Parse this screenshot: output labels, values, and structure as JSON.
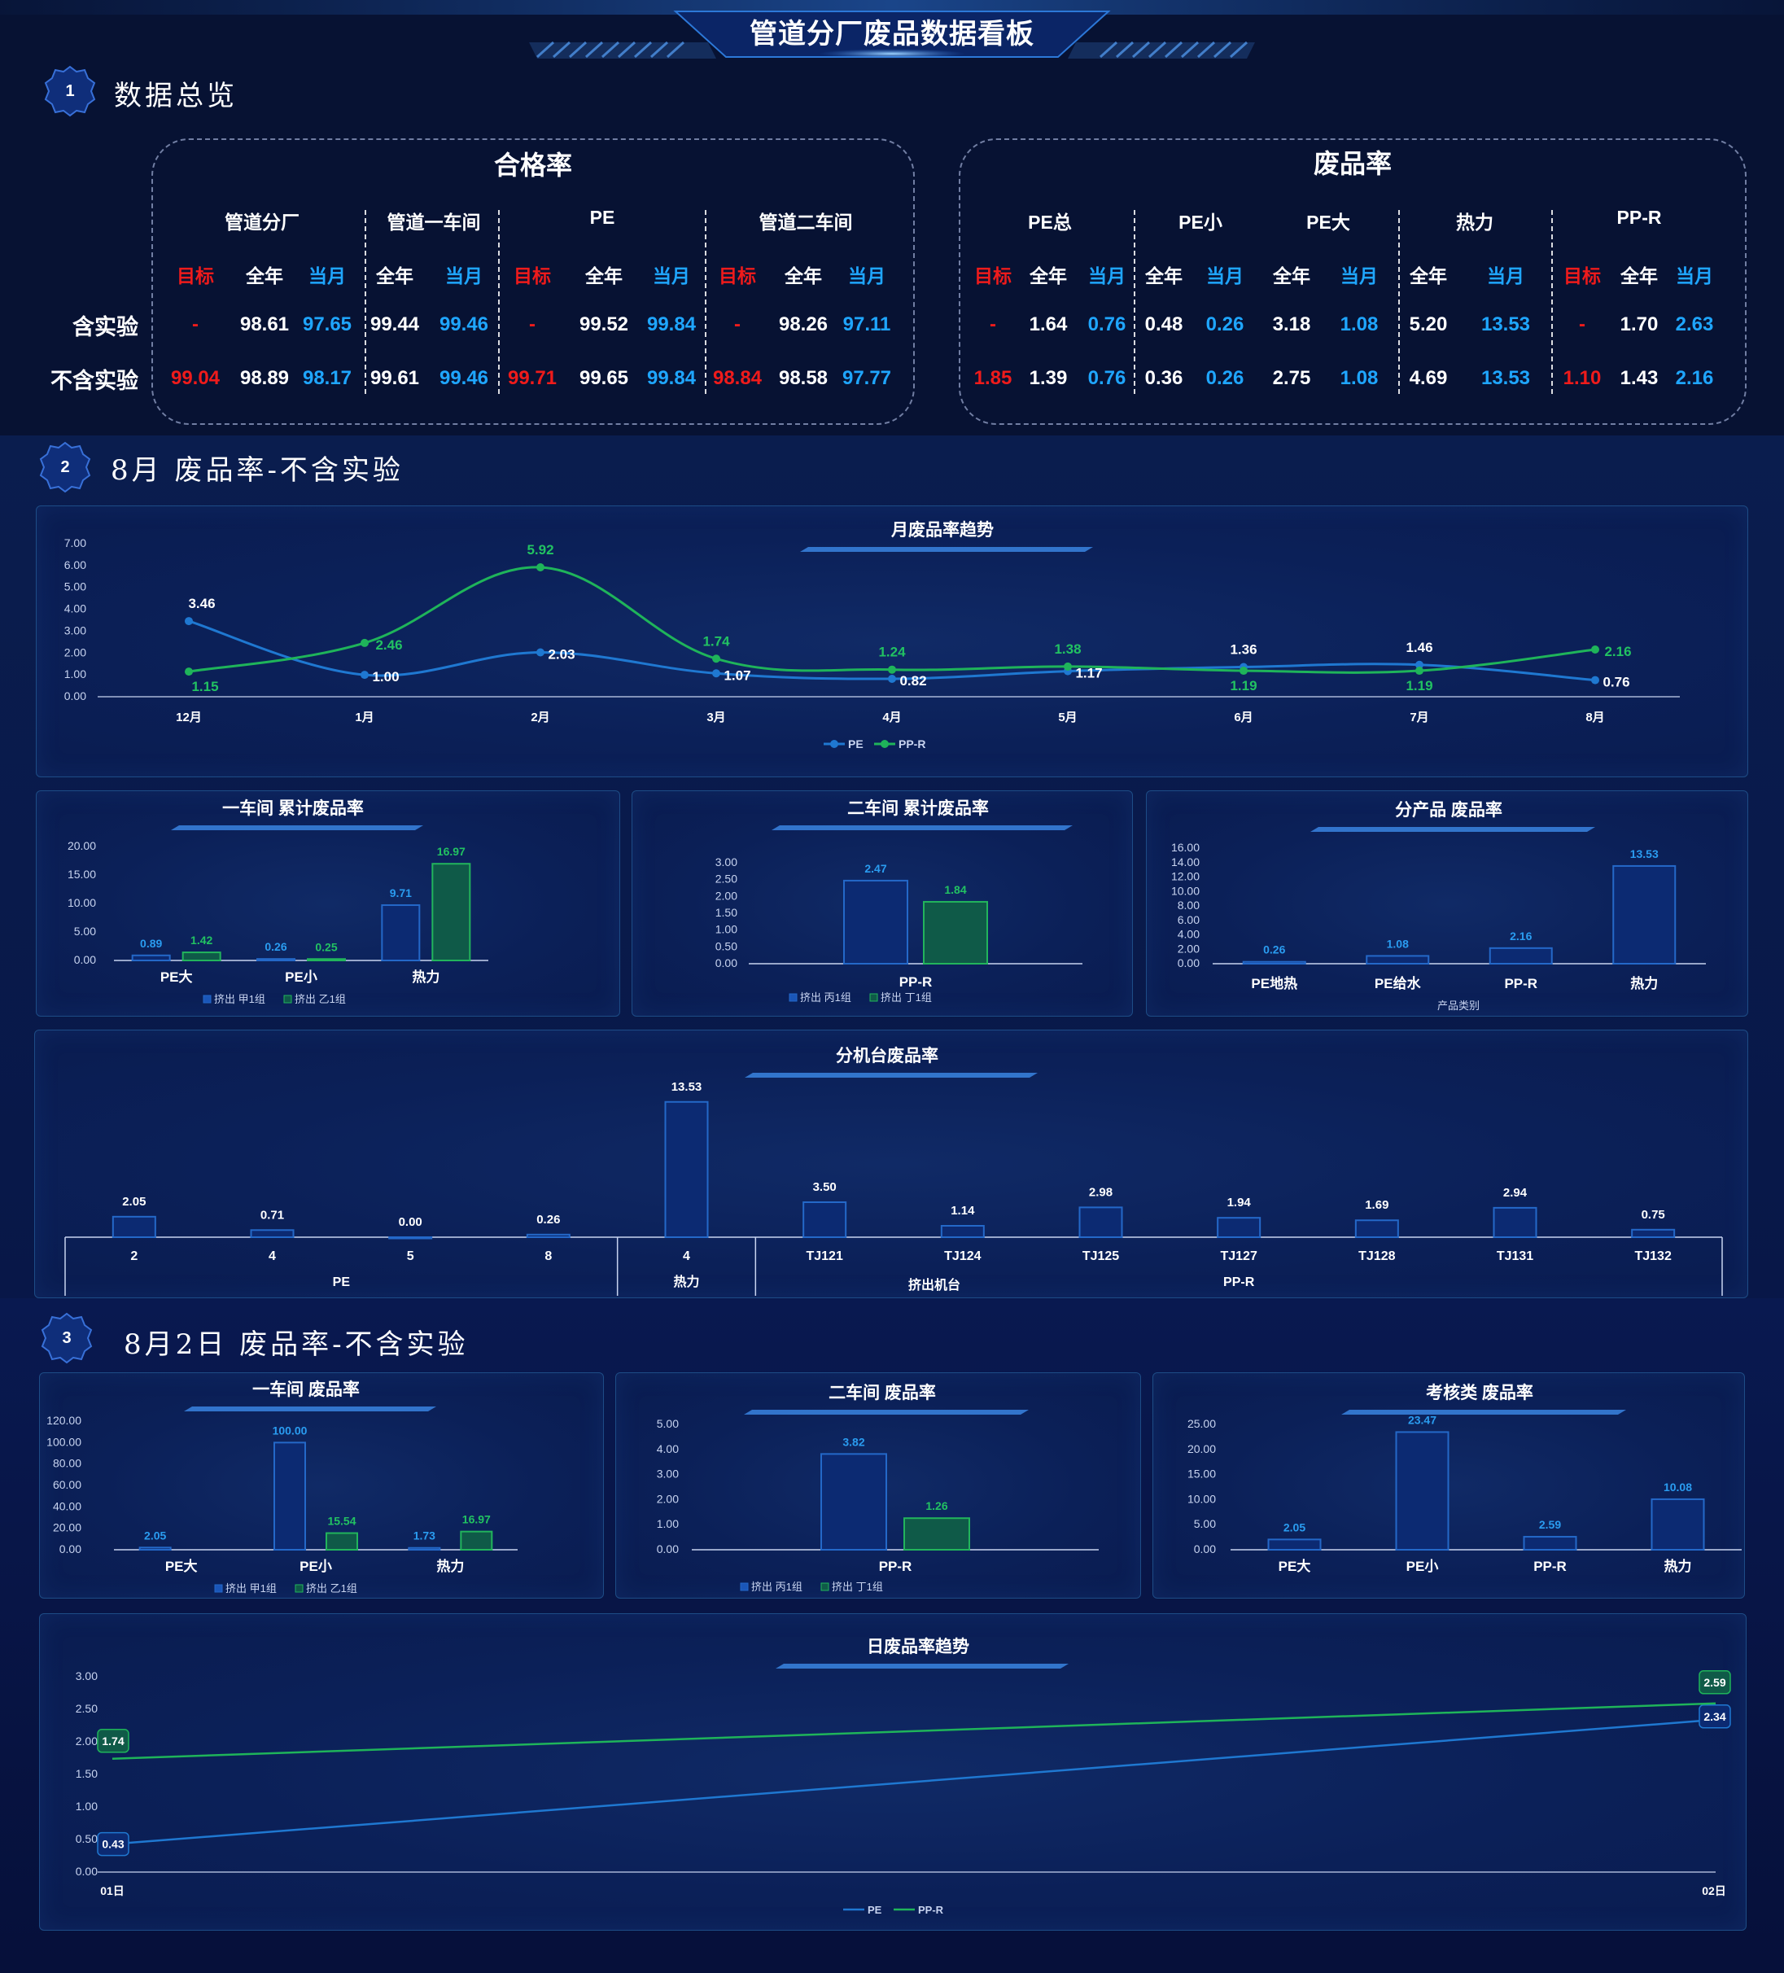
{
  "header": {
    "title": "管道分厂废品数据看板"
  },
  "sections": [
    {
      "num": "1",
      "title": "数据总览"
    },
    {
      "num": "2",
      "title": "8月 废品率-不含实验"
    },
    {
      "num": "3",
      "title": "8月2日 废品率-不含实验"
    }
  ],
  "overview": {
    "pass_rate": {
      "title": "合格率",
      "groups": [
        "管道分厂",
        "管道一车间",
        "PE",
        "管道二车间"
      ],
      "columns": [
        "目标",
        "全年",
        "当月",
        "全年",
        "当月",
        "目标",
        "全年",
        "当月",
        "目标",
        "全年",
        "当月"
      ],
      "row_labels": [
        "含实验",
        "不含实验"
      ],
      "rows": [
        [
          "-",
          "98.61",
          "97.65",
          "99.44",
          "99.46",
          "-",
          "99.52",
          "99.84",
          "-",
          "98.26",
          "97.11"
        ],
        [
          "99.04",
          "98.89",
          "98.17",
          "99.61",
          "99.46",
          "99.71",
          "99.65",
          "99.84",
          "98.84",
          "98.58",
          "97.77"
        ]
      ]
    },
    "scrap_rate": {
      "title": "废品率",
      "groups": [
        "PE总",
        "PE小",
        "PE大",
        "热力",
        "PP-R"
      ],
      "columns": [
        "目标",
        "全年",
        "当月",
        "全年",
        "当月",
        "全年",
        "当月",
        "全年",
        "当月",
        "目标",
        "全年",
        "当月"
      ],
      "rows": [
        [
          "-",
          "1.64",
          "0.76",
          "0.48",
          "0.26",
          "3.18",
          "1.08",
          "5.20",
          "13.53",
          "-",
          "1.70",
          "2.63"
        ],
        [
          "1.85",
          "1.39",
          "0.76",
          "0.36",
          "0.26",
          "2.75",
          "1.08",
          "4.69",
          "13.53",
          "1.10",
          "1.43",
          "2.16"
        ]
      ]
    }
  },
  "chart_data": [
    {
      "id": "monthly_trend",
      "type": "line",
      "title": "月废品率趋势",
      "categories": [
        "12月",
        "1月",
        "2月",
        "3月",
        "4月",
        "5月",
        "6月",
        "7月",
        "8月"
      ],
      "series": [
        {
          "name": "PE",
          "color": "#1f78d1",
          "values": [
            3.46,
            1.0,
            2.03,
            1.07,
            0.82,
            1.17,
            1.36,
            1.46,
            0.76
          ]
        },
        {
          "name": "PP-R",
          "color": "#1fb45a",
          "values": [
            1.15,
            2.46,
            5.92,
            1.74,
            1.24,
            1.38,
            1.19,
            1.19,
            2.16
          ]
        }
      ],
      "y_ticks": [
        "0.00",
        "1.00",
        "2.00",
        "3.00",
        "4.00",
        "5.00",
        "6.00",
        "7.00"
      ],
      "ylim": [
        0,
        7
      ]
    },
    {
      "id": "w1_cum",
      "type": "bar",
      "title": "一车间 累计废品率",
      "categories": [
        "PE大",
        "PE小",
        "热力"
      ],
      "series": [
        {
          "name": "挤出 甲1组",
          "color": "#1f78d1",
          "values": [
            0.89,
            0.26,
            9.71
          ]
        },
        {
          "name": "挤出 乙1组",
          "color": "#1fb45a",
          "values": [
            1.42,
            0.25,
            16.97
          ]
        }
      ],
      "y_ticks": [
        "0.00",
        "5.00",
        "10.00",
        "15.00",
        "20.00"
      ],
      "ylim": [
        0,
        20
      ]
    },
    {
      "id": "w2_cum",
      "type": "bar",
      "title": "二车间 累计废品率",
      "categories": [
        "PP-R"
      ],
      "series": [
        {
          "name": "挤出 丙1组",
          "color": "#1f78d1",
          "values": [
            2.47
          ]
        },
        {
          "name": "挤出 丁1组",
          "color": "#1fb45a",
          "values": [
            1.84
          ]
        }
      ],
      "y_ticks": [
        "0.00",
        "0.50",
        "1.00",
        "1.50",
        "2.00",
        "2.50",
        "3.00"
      ],
      "ylim": [
        0,
        3
      ]
    },
    {
      "id": "by_product",
      "type": "bar",
      "title": "分产品 废品率",
      "categories": [
        "PE地热",
        "PE给水",
        "PP-R",
        "热力"
      ],
      "series": [
        {
          "name": "",
          "color": "#1f78d1",
          "values": [
            0.26,
            1.08,
            2.16,
            13.53
          ]
        }
      ],
      "xlabel": "产品类别",
      "y_ticks": [
        "0.00",
        "2.00",
        "4.00",
        "6.00",
        "8.00",
        "10.00",
        "12.00",
        "14.00",
        "16.00"
      ],
      "ylim": [
        0,
        16
      ]
    },
    {
      "id": "by_machine",
      "type": "bar",
      "title": "分机台废品率",
      "categories": [
        "2",
        "4",
        "5",
        "8",
        "4",
        "TJ121",
        "TJ124",
        "TJ125",
        "TJ127",
        "TJ128",
        "TJ131",
        "TJ132"
      ],
      "series": [
        {
          "name": "",
          "color": "#1f78d1",
          "values": [
            2.05,
            0.71,
            0.0,
            0.26,
            13.53,
            3.5,
            1.14,
            2.98,
            1.94,
            1.69,
            2.94,
            0.75
          ]
        }
      ],
      "groups": [
        {
          "label": "PE",
          "span": 4
        },
        {
          "label": "热力",
          "span": 1
        },
        {
          "label": "PP-R",
          "span": 7
        }
      ],
      "group_parent": "挤出机台",
      "ylim": [
        0,
        14
      ]
    },
    {
      "id": "d_w1",
      "type": "bar",
      "title": "一车间 废品率",
      "categories": [
        "PE大",
        "PE小",
        "热力"
      ],
      "series": [
        {
          "name": "挤出 甲1组",
          "color": "#1f78d1",
          "values": [
            2.05,
            100.0,
            1.73
          ]
        },
        {
          "name": "挤出 乙1组",
          "color": "#1fb45a",
          "values": [
            null,
            15.54,
            16.97
          ]
        }
      ],
      "y_ticks": [
        "0.00",
        "20.00",
        "40.00",
        "60.00",
        "80.00",
        "100.00",
        "120.00"
      ],
      "ylim": [
        0,
        120
      ]
    },
    {
      "id": "d_w2",
      "type": "bar",
      "title": "二车间 废品率",
      "categories": [
        "PP-R"
      ],
      "series": [
        {
          "name": "挤出 丙1组",
          "color": "#1f78d1",
          "values": [
            3.82
          ]
        },
        {
          "name": "挤出 丁1组",
          "color": "#1fb45a",
          "values": [
            1.26
          ]
        }
      ],
      "y_ticks": [
        "0.00",
        "1.00",
        "2.00",
        "3.00",
        "4.00",
        "5.00"
      ],
      "ylim": [
        0,
        5
      ]
    },
    {
      "id": "d_assess",
      "type": "bar",
      "title": "考核类 废品率",
      "categories": [
        "PE大",
        "PE小",
        "PP-R",
        "热力"
      ],
      "series": [
        {
          "name": "",
          "color": "#1f78d1",
          "values": [
            2.05,
            23.47,
            2.59,
            10.08
          ]
        }
      ],
      "y_ticks": [
        "0.00",
        "5.00",
        "10.00",
        "15.00",
        "20.00",
        "25.00"
      ],
      "ylim": [
        0,
        25
      ]
    },
    {
      "id": "daily_trend",
      "type": "line",
      "title": "日废品率趋势",
      "categories": [
        "01日",
        "02日"
      ],
      "series": [
        {
          "name": "PE",
          "color": "#1f78d1",
          "values": [
            0.43,
            2.34
          ]
        },
        {
          "name": "PP-R",
          "color": "#1fb45a",
          "values": [
            1.74,
            2.59
          ]
        }
      ],
      "y_ticks": [
        "0.00",
        "0.50",
        "1.00",
        "1.50",
        "2.00",
        "2.50",
        "3.00"
      ],
      "ylim": [
        0,
        3
      ]
    }
  ]
}
